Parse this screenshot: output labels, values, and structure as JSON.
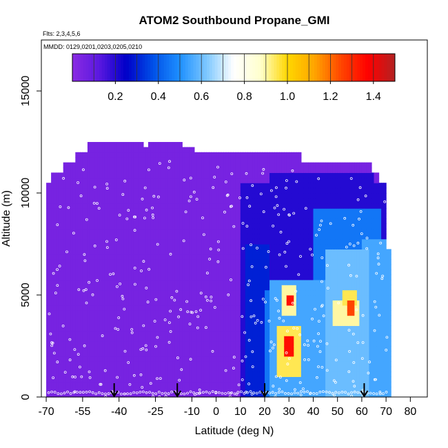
{
  "figure": {
    "title": "ATOM2 Southbound Propane_GMI",
    "flights_label": "Flts: 2,3,4,5,6",
    "dates_label": "MMDD: 0129,0201,0203,0205,0210"
  },
  "chart_data": {
    "type": "heatmap",
    "title": "ATOM2 Southbound Propane_GMI",
    "xlabel": "Latitude (deg N)",
    "ylabel": "Altitude (m)",
    "xlim": [
      -72,
      87
    ],
    "ylim": [
      0,
      17500
    ],
    "x_ticks": [
      -70,
      -55,
      -40,
      -25,
      -10,
      0,
      10,
      20,
      30,
      40,
      50,
      60,
      70,
      80
    ],
    "x_tick_labels": [
      "-70",
      "-55",
      "-40",
      "-25",
      "-10",
      "0",
      "10",
      "20",
      "30",
      "40",
      "50",
      "60",
      "70",
      "80"
    ],
    "y_ticks": [
      0,
      5000,
      10000,
      15000
    ],
    "y_tick_labels": [
      "0",
      "5000",
      "10000",
      "15000"
    ],
    "colorbar": {
      "range": [
        0.0,
        1.5
      ],
      "ticks": [
        0.2,
        0.4,
        0.6,
        0.8,
        1.0,
        1.2,
        1.4
      ],
      "tick_labels": [
        "0.2",
        "0.4",
        "0.6",
        "0.8",
        "1.0",
        "1.2",
        "1.4"
      ],
      "colors": [
        "#8a2be2",
        "#5a18e0",
        "#0000c8",
        "#0050e8",
        "#1e90ff",
        "#7ec8ff",
        "#ffffff",
        "#ffffcc",
        "#ffd700",
        "#ffa500",
        "#ff4500",
        "#ff0000",
        "#b22222"
      ]
    },
    "background_value": 0.05,
    "regions": [
      {
        "lat": [
          10,
          72
        ],
        "alt": [
          0,
          10500
        ],
        "value": 0.2
      },
      {
        "lat": [
          22,
          65
        ],
        "alt": [
          0,
          11000
        ],
        "value": 0.2
      },
      {
        "lat": [
          12,
          22
        ],
        "alt": [
          0,
          7500
        ],
        "value": 0.3
      },
      {
        "lat": [
          20,
          25
        ],
        "alt": [
          0,
          5200
        ],
        "value": 0.45
      },
      {
        "lat": [
          22,
          45
        ],
        "alt": [
          0,
          5800
        ],
        "value": 0.55
      },
      {
        "lat": [
          40,
          68
        ],
        "alt": [
          0,
          9200
        ],
        "value": 0.45
      },
      {
        "lat": [
          45,
          63
        ],
        "alt": [
          0,
          7200
        ],
        "value": 0.6
      },
      {
        "lat": [
          60,
          72
        ],
        "alt": [
          0,
          7800
        ],
        "value": 0.55
      },
      {
        "lat": [
          25,
          35
        ],
        "alt": [
          900,
          3400
        ],
        "value": 0.95
      },
      {
        "lat": [
          27,
          33
        ],
        "alt": [
          4100,
          5400
        ],
        "value": 0.9
      },
      {
        "lat": [
          48,
          59
        ],
        "alt": [
          3600,
          4800
        ],
        "value": 0.9
      },
      {
        "lat": [
          52,
          58
        ],
        "alt": [
          4400,
          5200
        ],
        "value": 0.95
      },
      {
        "lat": [
          28,
          32
        ],
        "alt": [
          1900,
          3100
        ],
        "value": 1.35
      },
      {
        "lat": [
          29,
          32
        ],
        "alt": [
          4500,
          5000
        ],
        "value": 1.35
      },
      {
        "lat": [
          54,
          57
        ],
        "alt": [
          3900,
          4700
        ],
        "value": 1.25
      }
    ],
    "profile_markers_lat": [
      -42,
      -16,
      20,
      61
    ]
  }
}
